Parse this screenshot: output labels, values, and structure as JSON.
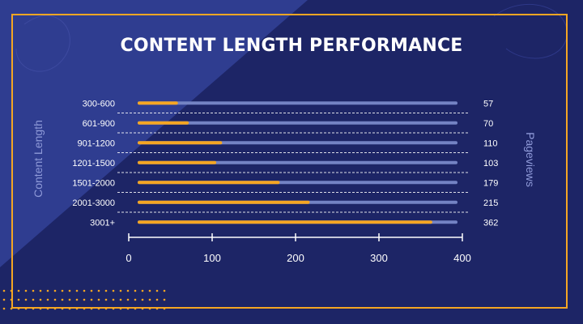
{
  "chart_data": {
    "type": "bar",
    "title": "CONTENT LENGTH PERFORMANCE",
    "ylabel": "Content Length",
    "y2label": "Pageviews",
    "categories": [
      "300-600",
      "601-900",
      "901-1200",
      "1201-1500",
      "1501-2000",
      "2001-3000",
      "3001+"
    ],
    "values": [
      57,
      70,
      110,
      103,
      179,
      215,
      362
    ],
    "value_labels": [
      "57",
      "70",
      "110",
      "103",
      "179",
      "215",
      "362"
    ],
    "xlim": [
      0,
      400
    ],
    "xticks": [
      "0",
      "100",
      "200",
      "300",
      "400"
    ],
    "orientation": "horizontal",
    "colors": {
      "bar": "#f5a623",
      "track": "#7483c4",
      "text": "#ffffff",
      "axis": "#ffffff",
      "label": "#8f9ad9"
    }
  }
}
